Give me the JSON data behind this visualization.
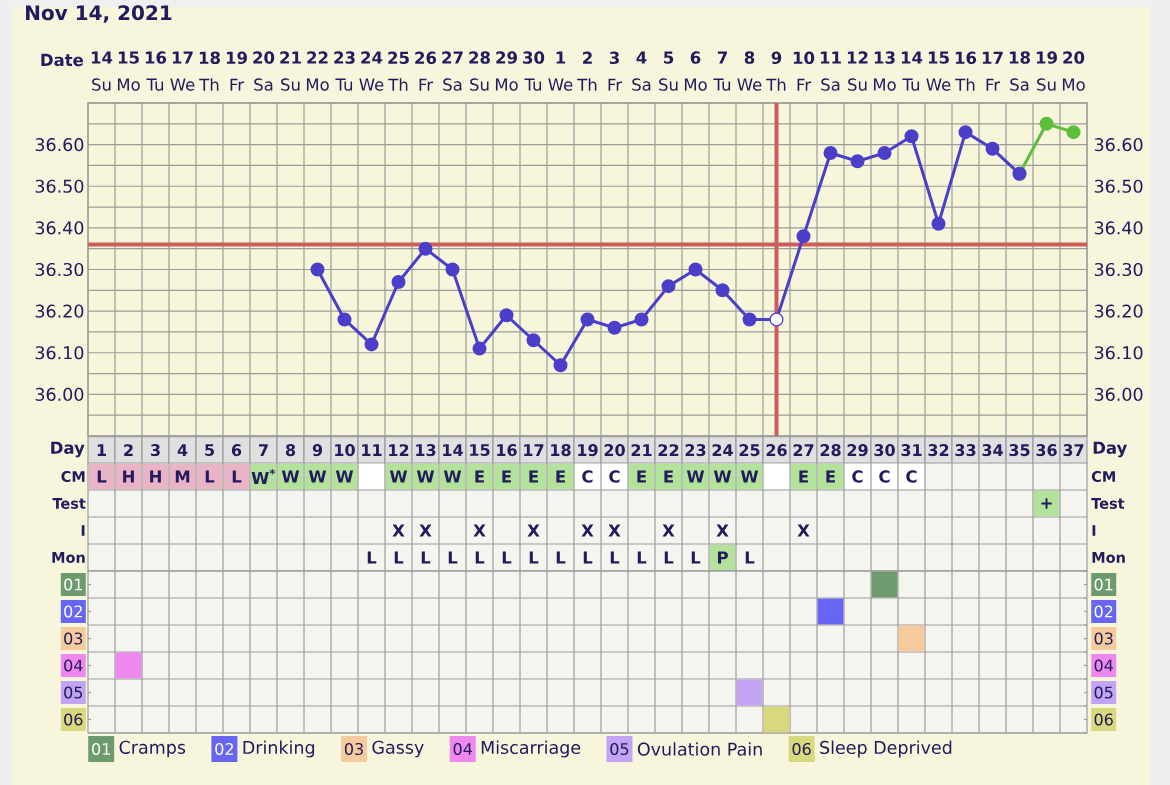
{
  "chart_data": [
    {
      "type": "line",
      "title": "Nov 14, 2021",
      "xlabel": "Day",
      "x2label": "Date",
      "xlim": [
        0.5,
        37.5
      ],
      "xticks": [
        1,
        2,
        3,
        4,
        5,
        6,
        7,
        8,
        9,
        10,
        11,
        12,
        13,
        14,
        15,
        16,
        17,
        18,
        19,
        20,
        21,
        22,
        23,
        24,
        25,
        26,
        27,
        28,
        29,
        30,
        31,
        32,
        33,
        34,
        35,
        36,
        37
      ],
      "x2lim": [
        "2021-11-13T12:00",
        "2021-12-20T12:00"
      ],
      "x2ticks": [
        {
          "value": "2021-11-14",
          "label": "**14** Su"
        },
        {
          "value": "2021-11-15",
          "label": "**15** Mo"
        },
        {
          "value": "2021-11-16",
          "label": "**16** Tu"
        },
        {
          "value": "2021-11-17",
          "label": "**17** We"
        },
        {
          "value": "2021-11-18",
          "label": "**18** Th"
        },
        {
          "value": "2021-11-19",
          "label": "**19** Fr"
        },
        {
          "value": "2021-11-20",
          "label": "**20** Sa"
        },
        {
          "value": "2021-11-21",
          "label": "**21** Su"
        },
        {
          "value": "2021-11-22",
          "label": "**22** Mo"
        },
        {
          "value": "2021-11-23",
          "label": "**23** Tu"
        },
        {
          "value": "2021-11-24",
          "label": "**24** We"
        },
        {
          "value": "2021-11-25",
          "label": "**25** Th"
        },
        {
          "value": "2021-11-26",
          "label": "**26** Fr"
        },
        {
          "value": "2021-11-27",
          "label": "**27** Sa"
        },
        {
          "value": "2021-11-28",
          "label": "**28** Su"
        },
        {
          "value": "2021-11-29",
          "label": "**29** Mo"
        },
        {
          "value": "2021-11-30",
          "label": "**30** Tu"
        },
        {
          "value": "2021-12-01",
          "label": "**1** We"
        },
        {
          "value": "2021-12-02",
          "label": "**2** Th"
        },
        {
          "value": "2021-12-03",
          "label": "**3** Fr"
        },
        {
          "value": "2021-12-04",
          "label": "**4** Sa"
        },
        {
          "value": "2021-12-05",
          "label": "**5** Su"
        },
        {
          "value": "2021-12-06",
          "label": "**6** Mo"
        },
        {
          "value": "2021-12-07",
          "label": "**7** Tu"
        },
        {
          "value": "2021-12-08",
          "label": "**8** We"
        },
        {
          "value": "2021-12-09",
          "label": "**9** Th"
        },
        {
          "value": "2021-12-10",
          "label": "**10** Fr"
        },
        {
          "value": "2021-12-11",
          "label": "**11** Sa"
        },
        {
          "value": "2021-12-12",
          "label": "**12** Su"
        },
        {
          "value": "2021-12-13",
          "label": "**13** Mo"
        },
        {
          "value": "2021-12-14",
          "label": "**14** Tu"
        },
        {
          "value": "2021-12-15",
          "label": "**15** We"
        },
        {
          "value": "2021-12-16",
          "label": "**16** Th"
        },
        {
          "value": "2021-12-17",
          "label": "**17** Fr"
        },
        {
          "value": "2021-12-18",
          "label": "**18** Sa"
        },
        {
          "value": "2021-12-19",
          "label": "**19** Su"
        },
        {
          "value": "2021-12-20",
          "label": "**20** Mo"
        }
      ],
      "ylim": [
        35.9,
        36.7
      ],
      "yticks": [
        {
          "value": 35.95,
          "label": null
        },
        {
          "value": 36.0,
          "label": "36.00"
        },
        {
          "value": 36.05,
          "label": null
        },
        {
          "value": 36.1,
          "label": "36.10"
        },
        {
          "value": 36.15,
          "label": null
        },
        {
          "value": 36.2,
          "label": "36.20"
        },
        {
          "value": 36.25,
          "label": null
        },
        {
          "value": 36.3,
          "label": "36.30"
        },
        {
          "value": 36.35,
          "label": null
        },
        {
          "value": 36.4,
          "label": "36.40"
        },
        {
          "value": 36.45,
          "label": null
        },
        {
          "value": 36.5,
          "label": "36.50"
        },
        {
          "value": 36.55,
          "label": null
        },
        {
          "value": 36.6,
          "label": "36.60"
        },
        {
          "value": 36.65,
          "label": null
        }
      ],
      "y2lim": [
        35.9,
        36.7
      ],
      "y2ticks": [
        {
          "value": 35.95,
          "label": null
        },
        {
          "value": 36.0,
          "label": "36.00"
        },
        {
          "value": 36.05,
          "label": null
        },
        {
          "value": 36.1,
          "label": "36.10"
        },
        {
          "value": 36.15,
          "label": null
        },
        {
          "value": 36.2,
          "label": "36.20"
        },
        {
          "value": 36.25,
          "label": null
        },
        {
          "value": 36.3,
          "label": "36.30"
        },
        {
          "value": 36.35,
          "label": null
        },
        {
          "value": 36.4,
          "label": "36.40"
        },
        {
          "value": 36.45,
          "label": null
        },
        {
          "value": 36.5,
          "label": "36.50"
        },
        {
          "value": 36.55,
          "label": null
        },
        {
          "value": 36.6,
          "label": "36.60"
        },
        {
          "value": 36.65,
          "label": null
        }
      ],
      "grid": true,
      "marker": "circle",
      "ref_lines": [
        {
          "axis": "y",
          "value": 36.36,
          "color": "#cd5c5c"
        },
        {
          "axis": "x",
          "value": 26,
          "color": "#cd5c5c"
        }
      ],
      "series": [
        {
          "color": "#5cbf3c",
          "x": [
            35,
            36,
            37
          ],
          "values": [
            36.53,
            36.65,
            36.63
          ]
        },
        {
          "color": "#4b3fc9",
          "x": [
            9,
            10,
            11,
            12,
            13,
            14,
            15,
            16,
            17,
            18,
            19,
            20,
            21,
            22,
            23,
            24,
            25,
            26,
            27,
            28,
            29,
            30,
            31,
            32,
            33,
            34,
            35
          ],
          "values": [
            36.3,
            36.18,
            36.12,
            36.27,
            36.35,
            36.3,
            36.11,
            36.19,
            36.13,
            36.07,
            36.18,
            36.16,
            36.18,
            36.26,
            36.3,
            36.25,
            36.18,
            36.18,
            36.38,
            36.58,
            36.56,
            36.58,
            36.62,
            36.41,
            36.63,
            36.59,
            36.53
          ]
        },
        {
          "type": "scatter",
          "color": "#ffffff",
          "x": [
            26
          ],
          "values": [
            36.18
          ]
        }
      ]
    },
    {
      "type": "heatmap",
      "tick_labels": "y",
      "categories": [
        null,
        null,
        null,
        null,
        null,
        null,
        null,
        null,
        null,
        null,
        null,
        null,
        null,
        null,
        null,
        null,
        null,
        null,
        null,
        null,
        null,
        null,
        null,
        null,
        null,
        null,
        null,
        null,
        null,
        null,
        null,
        null,
        null,
        null,
        null,
        null,
        null
      ],
      "y_categories": [
        "CM",
        "Test",
        "I",
        "Mon"
      ],
      "y2_categories": [
        "CM",
        "Test",
        "I",
        "Mon"
      ],
      "cells": [
        [
          null,
          null,
          null,
          null,
          null,
          null,
          null,
          null,
          null,
          null,
          null,
          null,
          null,
          null,
          null,
          null,
          null,
          null,
          null,
          null,
          null,
          null,
          null,
          null,
          null,
          null,
          null,
          null,
          null,
          null,
          null,
          null,
          null,
          null,
          null,
          null,
          null
        ],
        [
          null,
          null,
          null,
          null,
          null,
          null,
          null,
          null,
          null,
          null,
          null,
          null,
          null,
          null,
          null,
          null,
          null,
          null,
          null,
          null,
          null,
          null,
          null,
          null,
          null,
          null,
          null,
          null,
          null,
          null,
          null,
          null,
          null,
          null,
          null,
          null,
          null
        ],
        [
          null,
          null,
          null,
          null,
          null,
          null,
          null,
          null,
          null,
          null,
          null,
          null,
          null,
          null,
          null,
          null,
          null,
          null,
          null,
          null,
          null,
          null,
          null,
          null,
          null,
          null,
          null,
          null,
          null,
          null,
          null,
          null,
          null,
          null,
          null,
          null,
          null
        ],
        [
          null,
          null,
          null,
          null,
          null,
          null,
          null,
          null,
          null,
          null,
          null,
          null,
          null,
          null,
          null,
          null,
          null,
          null,
          null,
          null,
          null,
          null,
          null,
          null,
          null,
          null,
          null,
          null,
          null,
          null,
          null,
          null,
          null,
          null,
          null,
          null,
          null
        ]
      ],
      "cell_labels": [
        [
          "L",
          "H",
          "H",
          "M",
          "L",
          "L",
          "W$^{*}$",
          "W",
          "W",
          "W",
          null,
          "W",
          "W",
          "W",
          "E",
          "E",
          "E",
          "E",
          "C",
          "C",
          "E",
          "E",
          "W",
          "W",
          "W",
          null,
          "E",
          "E",
          "C",
          "C",
          "C",
          null,
          null,
          null,
          null,
          null,
          null
        ],
        [
          null,
          null,
          null,
          null,
          null,
          null,
          null,
          null,
          null,
          null,
          null,
          null,
          null,
          null,
          null,
          null,
          null,
          null,
          null,
          null,
          null,
          null,
          null,
          null,
          null,
          null,
          null,
          null,
          null,
          null,
          null,
          null,
          null,
          null,
          null,
          "+",
          null
        ],
        [
          null,
          null,
          null,
          null,
          null,
          null,
          null,
          null,
          null,
          null,
          null,
          "X",
          "X",
          null,
          "X",
          null,
          "X",
          null,
          "X",
          "X",
          null,
          "X",
          null,
          "X",
          null,
          null,
          "X",
          null,
          null,
          null,
          null,
          null,
          null,
          null,
          null,
          null,
          null
        ],
        [
          null,
          null,
          null,
          null,
          null,
          null,
          null,
          null,
          null,
          null,
          "L",
          "L",
          "L",
          "L",
          "L",
          "L",
          "L",
          "L",
          "L",
          "L",
          "L",
          "L",
          "L",
          "P",
          "L",
          null,
          null,
          null,
          null,
          null,
          null,
          null,
          null,
          null,
          null,
          null,
          null
        ]
      ],
      "colors": [
        [
          "#e8b4c6",
          "#e8b4c6",
          "#e8b4c6",
          "#e8b4c6",
          "#e8b4c6",
          "#e8b4c6",
          "#b3e39a",
          "#b3e39a",
          "#b3e39a",
          "#b3e39a",
          "#ffffff",
          "#b3e39a",
          "#b3e39a",
          "#b3e39a",
          "#b3e39a",
          "#b3e39a",
          "#b3e39a",
          "#b3e39a",
          "#ffffff",
          "#ffffff",
          "#b3e39a",
          "#b3e39a",
          "#b3e39a",
          "#b3e39a",
          "#b3e39a",
          "#ffffff",
          "#b3e39a",
          "#b3e39a",
          "#ffffff",
          "#ffffff",
          "#ffffff",
          null,
          null,
          null,
          null,
          null,
          null
        ],
        [
          null,
          null,
          null,
          null,
          null,
          null,
          null,
          null,
          null,
          null,
          null,
          null,
          null,
          null,
          null,
          null,
          null,
          null,
          null,
          null,
          null,
          null,
          null,
          null,
          null,
          null,
          null,
          null,
          null,
          null,
          null,
          null,
          null,
          null,
          null,
          "#b3e39a",
          null
        ],
        [
          null,
          null,
          null,
          null,
          null,
          null,
          null,
          null,
          null,
          null,
          null,
          null,
          null,
          null,
          null,
          null,
          null,
          null,
          null,
          null,
          null,
          null,
          null,
          null,
          null,
          null,
          null,
          null,
          null,
          null,
          null,
          null,
          null,
          null,
          null,
          null,
          null
        ],
        [
          null,
          null,
          null,
          null,
          null,
          null,
          null,
          null,
          null,
          null,
          null,
          null,
          null,
          null,
          null,
          null,
          null,
          null,
          null,
          null,
          null,
          null,
          null,
          "#b3e39a",
          null,
          null,
          null,
          null,
          null,
          null,
          null,
          null,
          null,
          null,
          null,
          null,
          null
        ]
      ]
    },
    {
      "type": "scatter",
      "marker": "square",
      "legend": "bottom",
      "tick_labels": "y",
      "grid": true,
      "categories": [
        null,
        null,
        null,
        null,
        null,
        null,
        null,
        null,
        null,
        null,
        null,
        null,
        null,
        null,
        null,
        null,
        null,
        null,
        null,
        null,
        null,
        null,
        null,
        null,
        null,
        null,
        null,
        null,
        null,
        null,
        null,
        null,
        null,
        null,
        null,
        null,
        null
      ],
      "ylim": [
        6.5,
        0.5
      ],
      "yticks": [
        {
          "value": 0.5,
          "label": null
        },
        {
          "value": 1,
          "label": "01"
        },
        {
          "value": 1.5,
          "label": null
        },
        {
          "value": 2,
          "label": "02"
        },
        {
          "value": 2.5,
          "label": null
        },
        {
          "value": 3,
          "label": "03"
        },
        {
          "value": 3.5,
          "label": null
        },
        {
          "value": 4,
          "label": "04"
        },
        {
          "value": 4.5,
          "label": null
        },
        {
          "value": 5,
          "label": "05"
        },
        {
          "value": 5.5,
          "label": null
        },
        {
          "value": 6,
          "label": "06"
        },
        {
          "value": 6.5,
          "label": null
        }
      ],
      "y2lim": [
        6.5,
        0.5
      ],
      "y2ticks": [
        {
          "value": 0.5,
          "label": null
        },
        {
          "value": 1,
          "label": "01"
        },
        {
          "value": 1.5,
          "label": null
        },
        {
          "value": 2,
          "label": "02"
        },
        {
          "value": 2.5,
          "label": null
        },
        {
          "value": 3,
          "label": "03"
        },
        {
          "value": 3.5,
          "label": null
        },
        {
          "value": 4,
          "label": "04"
        },
        {
          "value": 4.5,
          "label": null
        },
        {
          "value": 5,
          "label": "05"
        },
        {
          "value": 5.5,
          "label": null
        },
        {
          "value": 6,
          "label": "06"
        },
        {
          "value": 6.5,
          "label": null
        }
      ],
      "series": [
        {
          "name": "Cramps",
          "color": "#6e9b6e",
          "values": [
            null,
            null,
            null,
            null,
            null,
            null,
            null,
            null,
            null,
            null,
            null,
            null,
            null,
            null,
            null,
            null,
            null,
            null,
            null,
            null,
            null,
            null,
            null,
            null,
            null,
            null,
            null,
            null,
            null,
            1,
            null,
            null,
            null,
            null,
            null,
            null,
            null
          ]
        },
        {
          "name": "Drinking",
          "color": "#6666f2",
          "values": [
            null,
            null,
            null,
            null,
            null,
            null,
            null,
            null,
            null,
            null,
            null,
            null,
            null,
            null,
            null,
            null,
            null,
            null,
            null,
            null,
            null,
            null,
            null,
            null,
            null,
            null,
            null,
            2,
            null,
            null,
            null,
            null,
            null,
            null,
            null,
            null,
            null
          ]
        },
        {
          "name": "Gassy",
          "color": "#f5cb9d",
          "values": [
            null,
            null,
            null,
            null,
            null,
            null,
            null,
            null,
            null,
            null,
            null,
            null,
            null,
            null,
            null,
            null,
            null,
            null,
            null,
            null,
            null,
            null,
            null,
            null,
            null,
            null,
            null,
            null,
            null,
            null,
            3,
            null,
            null,
            null,
            null,
            null,
            null
          ]
        },
        {
          "name": "Miscarriage",
          "color": "#ee88ee",
          "values": [
            null,
            4,
            null,
            null,
            null,
            null,
            null,
            null,
            null,
            null,
            null,
            null,
            null,
            null,
            null,
            null,
            null,
            null,
            null,
            null,
            null,
            null,
            null,
            null,
            null,
            null,
            null,
            null,
            null,
            null,
            null,
            null,
            null,
            null,
            null,
            null,
            null
          ]
        },
        {
          "name": "Ovulation Pain",
          "color": "#c3a3f3",
          "values": [
            null,
            null,
            null,
            null,
            null,
            null,
            null,
            null,
            null,
            null,
            null,
            null,
            null,
            null,
            null,
            null,
            null,
            null,
            null,
            null,
            null,
            null,
            null,
            null,
            5,
            null,
            null,
            null,
            null,
            null,
            null,
            null,
            null,
            null,
            null,
            null,
            null
          ]
        },
        {
          "name": "Sleep Deprived",
          "color": "#d8d87c",
          "values": [
            null,
            null,
            null,
            null,
            null,
            null,
            null,
            null,
            null,
            null,
            null,
            null,
            null,
            null,
            null,
            null,
            null,
            null,
            null,
            null,
            null,
            null,
            null,
            null,
            null,
            6,
            null,
            null,
            null,
            null,
            null,
            null,
            null,
            null,
            null,
            null,
            null
          ]
        }
      ]
    }
  ]
}
